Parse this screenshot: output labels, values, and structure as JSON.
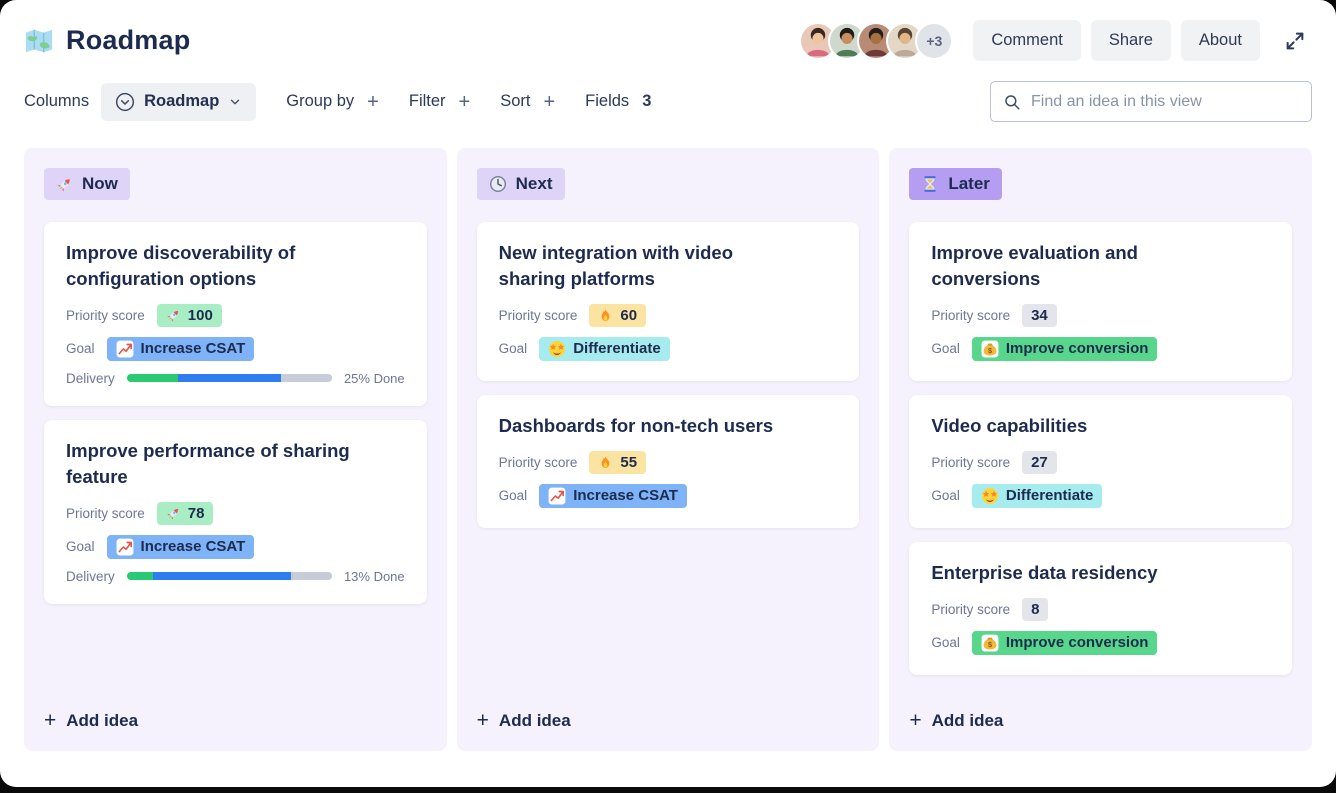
{
  "header": {
    "app_icon": "map-icon",
    "title": "Roadmap",
    "avatars": [
      "avatar-1",
      "avatar-2",
      "avatar-3",
      "avatar-4"
    ],
    "avatar_overflow": "+3",
    "comment_label": "Comment",
    "share_label": "Share",
    "about_label": "About",
    "expand_icon": "expand-icon"
  },
  "toolbar": {
    "columns_label": "Columns",
    "view_selector": {
      "icon": "circle-chevron-icon",
      "value": "Roadmap",
      "caret": "chevron-down-icon"
    },
    "group_by": {
      "label": "Group by",
      "add": "+"
    },
    "filter": {
      "label": "Filter",
      "add": "+"
    },
    "sort": {
      "label": "Sort",
      "add": "+"
    },
    "fields": {
      "label": "Fields",
      "count": "3"
    },
    "search": {
      "icon": "search-icon",
      "placeholder": "Find an idea in this view"
    }
  },
  "labels": {
    "priority_score": "Priority score",
    "goal": "Goal",
    "delivery": "Delivery",
    "add_idea": "Add idea",
    "plus": "+"
  },
  "colors": {
    "column_bg": "#f5f2fd",
    "badge_purple_light": "#ddd4f8",
    "badge_purple_dark": "#b59df2",
    "priority_green": "#a9edc5",
    "priority_yellow": "#fbe3a2",
    "priority_gray": "#e3e5ea",
    "goal_blue": "#7eb3f7",
    "goal_cyan": "#a6ebee",
    "goal_green": "#57d68c",
    "progress_done": "#2aca74",
    "progress_active": "#2f7df0",
    "progress_rest": "#c7ccd8"
  },
  "columns": [
    {
      "name": "Now",
      "icon": "rocket-icon",
      "badge_bg": "#ddd4f8",
      "cards": [
        {
          "title": "Improve discoverability of configuration options",
          "priority": {
            "icon": "rocket-icon",
            "value": "100",
            "bg": "#a9edc5"
          },
          "goal": {
            "icon": "chart-increasing-icon",
            "label": "Increase CSAT",
            "bg": "#7eb3f7"
          },
          "delivery": {
            "done_text": "25% Done",
            "segments": [
              {
                "color": "#2aca74",
                "pct": 25
              },
              {
                "color": "#2f7df0",
                "pct": 50
              },
              {
                "color": "#c7ccd8",
                "pct": 25
              }
            ]
          }
        },
        {
          "title": "Improve performance of sharing feature",
          "priority": {
            "icon": "rocket-icon",
            "value": "78",
            "bg": "#a9edc5"
          },
          "goal": {
            "icon": "chart-increasing-icon",
            "label": "Increase CSAT",
            "bg": "#7eb3f7"
          },
          "delivery": {
            "done_text": "13% Done",
            "segments": [
              {
                "color": "#2aca74",
                "pct": 13
              },
              {
                "color": "#2f7df0",
                "pct": 67
              },
              {
                "color": "#c7ccd8",
                "pct": 20
              }
            ]
          }
        }
      ]
    },
    {
      "name": "Next",
      "icon": "clock-icon",
      "badge_bg": "#ddd4f8",
      "cards": [
        {
          "title": "New integration with video sharing platforms",
          "priority": {
            "icon": "fire-icon",
            "value": "60",
            "bg": "#fbe3a2"
          },
          "goal": {
            "icon": "star-struck-icon",
            "label": "Differentiate",
            "bg": "#a6ebee"
          }
        },
        {
          "title": "Dashboards for non-tech users",
          "priority": {
            "icon": "fire-icon",
            "value": "55",
            "bg": "#fbe3a2"
          },
          "goal": {
            "icon": "chart-increasing-icon",
            "label": "Increase CSAT",
            "bg": "#7eb3f7"
          }
        }
      ]
    },
    {
      "name": "Later",
      "icon": "hourglass-icon",
      "badge_bg": "#b59df2",
      "cards": [
        {
          "title": "Improve evaluation and conversions",
          "priority": {
            "value": "34",
            "bg": "#e3e5ea"
          },
          "goal": {
            "icon": "money-icon",
            "label": "Improve conversion",
            "bg": "#57d68c"
          }
        },
        {
          "title": "Video capabilities",
          "priority": {
            "value": "27",
            "bg": "#e3e5ea"
          },
          "goal": {
            "icon": "star-struck-icon",
            "label": "Differentiate",
            "bg": "#a6ebee"
          }
        },
        {
          "title": "Enterprise data residency",
          "priority": {
            "value": "8",
            "bg": "#e3e5ea"
          },
          "goal": {
            "icon": "money-icon",
            "label": "Improve conversion",
            "bg": "#57d68c"
          }
        }
      ]
    }
  ]
}
